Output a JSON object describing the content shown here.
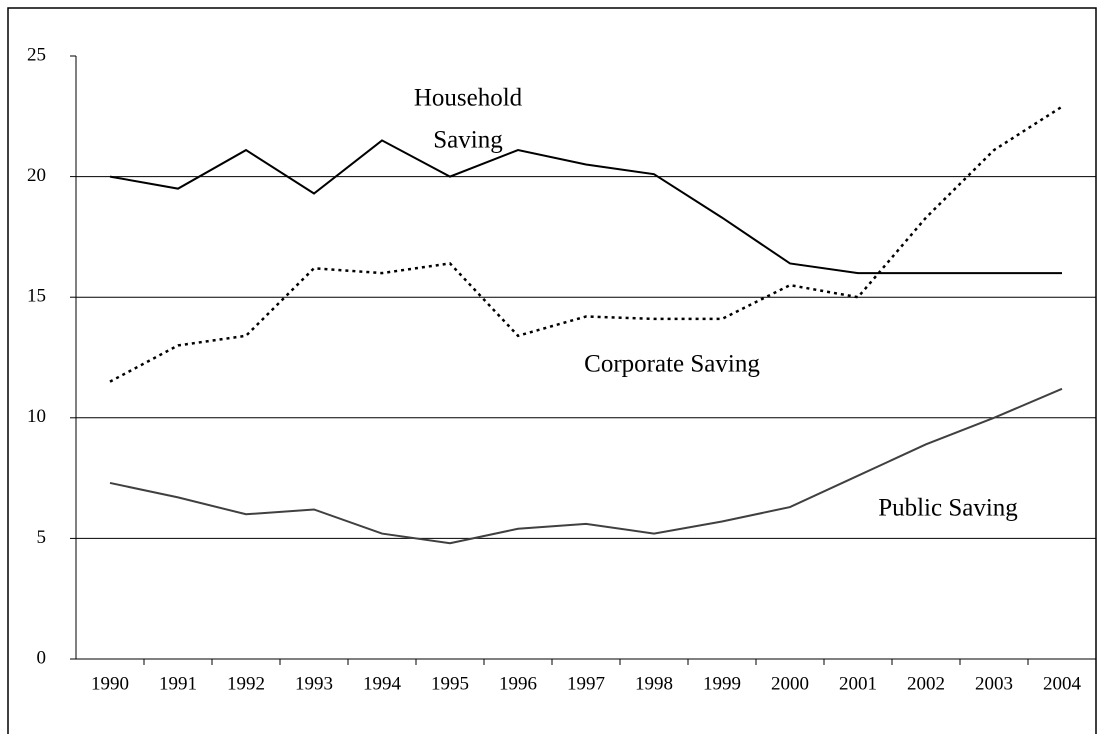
{
  "chart_data": {
    "type": "line",
    "categories": [
      "1990",
      "1991",
      "1992",
      "1993",
      "1994",
      "1995",
      "1996",
      "1997",
      "1998",
      "1999",
      "2000",
      "2001",
      "2002",
      "2003",
      "2004"
    ],
    "series": [
      {
        "color": "#000000",
        "dash": "solid",
        "values": [
          20.0,
          19.5,
          21.1,
          19.3,
          21.5,
          20.0,
          21.1,
          20.5,
          20.1,
          18.3,
          16.4,
          16.0,
          16.0,
          16.0,
          16.0
        ]
      },
      {
        "color": "#000000",
        "dash": "dotted",
        "values": [
          11.5,
          13.0,
          13.4,
          16.2,
          16.0,
          16.4,
          13.4,
          14.2,
          14.1,
          14.1,
          15.5,
          15.0,
          18.3,
          21.1,
          22.9
        ]
      },
      {
        "color": "#404040",
        "dash": "solid",
        "values": [
          7.3,
          6.7,
          6.0,
          6.2,
          5.2,
          4.8,
          5.4,
          5.6,
          5.2,
          5.7,
          6.3,
          7.6,
          8.9,
          10.0,
          11.2
        ]
      }
    ],
    "annotations": [
      "Household",
      "Saving",
      "Corporate Saving",
      "Public Saving"
    ],
    "ylim": [
      0,
      25
    ],
    "yticks": [
      0,
      5,
      10,
      15,
      20,
      25
    ],
    "grid": true
  }
}
